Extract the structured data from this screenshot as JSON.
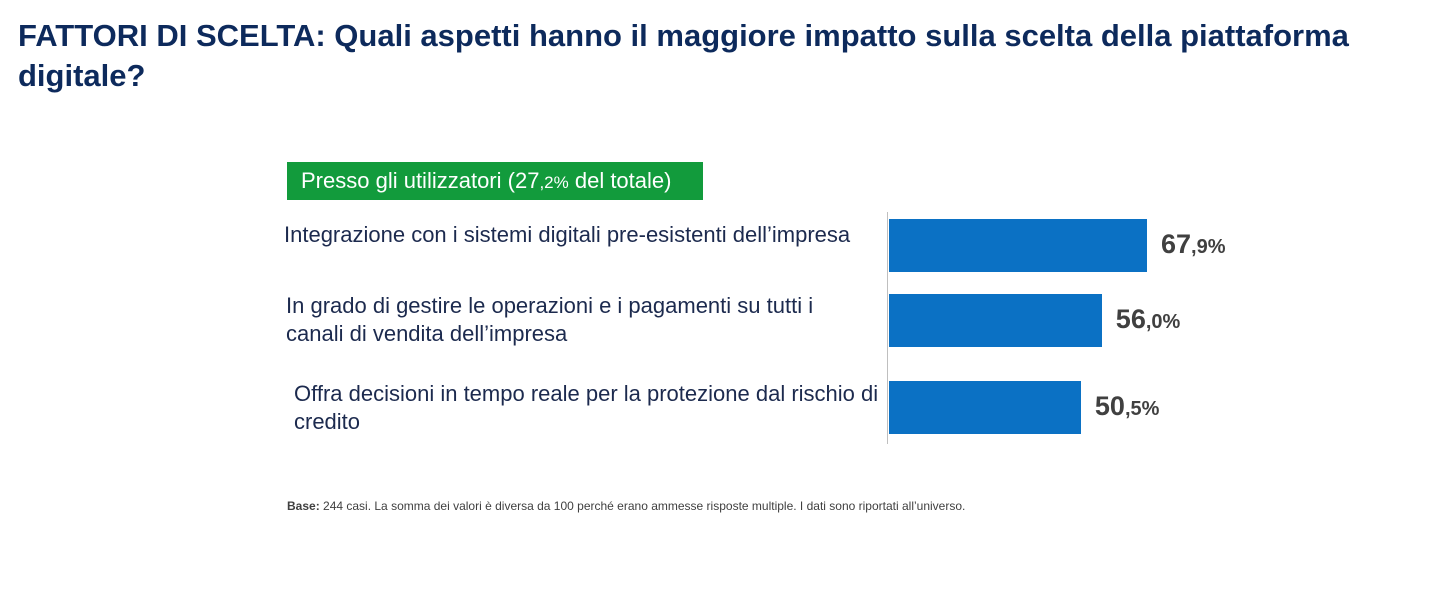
{
  "title": "FATTORI DI SCELTA: Quali aspetti hanno il maggiore impatto sulla scelta della piattaforma digitale?",
  "subgroup": {
    "prefix": "Presso gli utilizzatori (27",
    "small": ",2%",
    "suffix": " del totale)"
  },
  "colors": {
    "title": "#0d2a5c",
    "badge": "#129b3c",
    "bar": "#0b71c4",
    "value_text": "#404040"
  },
  "chart_data": {
    "type": "bar",
    "orientation": "horizontal",
    "categories": [
      "Integrazione con i sistemi digitali pre-esistenti dell’impresa",
      "In grado di gestire le operazioni e i pagamenti su tutti i canali di vendita dell’impresa",
      "Offra decisioni in tempo reale per la protezione dal rischio di credito"
    ],
    "values": [
      67.9,
      56.0,
      50.5
    ],
    "value_labels": [
      {
        "int": "67",
        "dec": ",9%"
      },
      {
        "int": "56",
        "dec": ",0%"
      },
      {
        "int": "50",
        "dec": ",5%"
      }
    ],
    "grid": false
  },
  "footnote": {
    "label": "Base:",
    "text": " 244 casi. La somma dei valori è diversa da 100 perché erano ammesse risposte multiple. I dati sono riportati all’universo."
  }
}
